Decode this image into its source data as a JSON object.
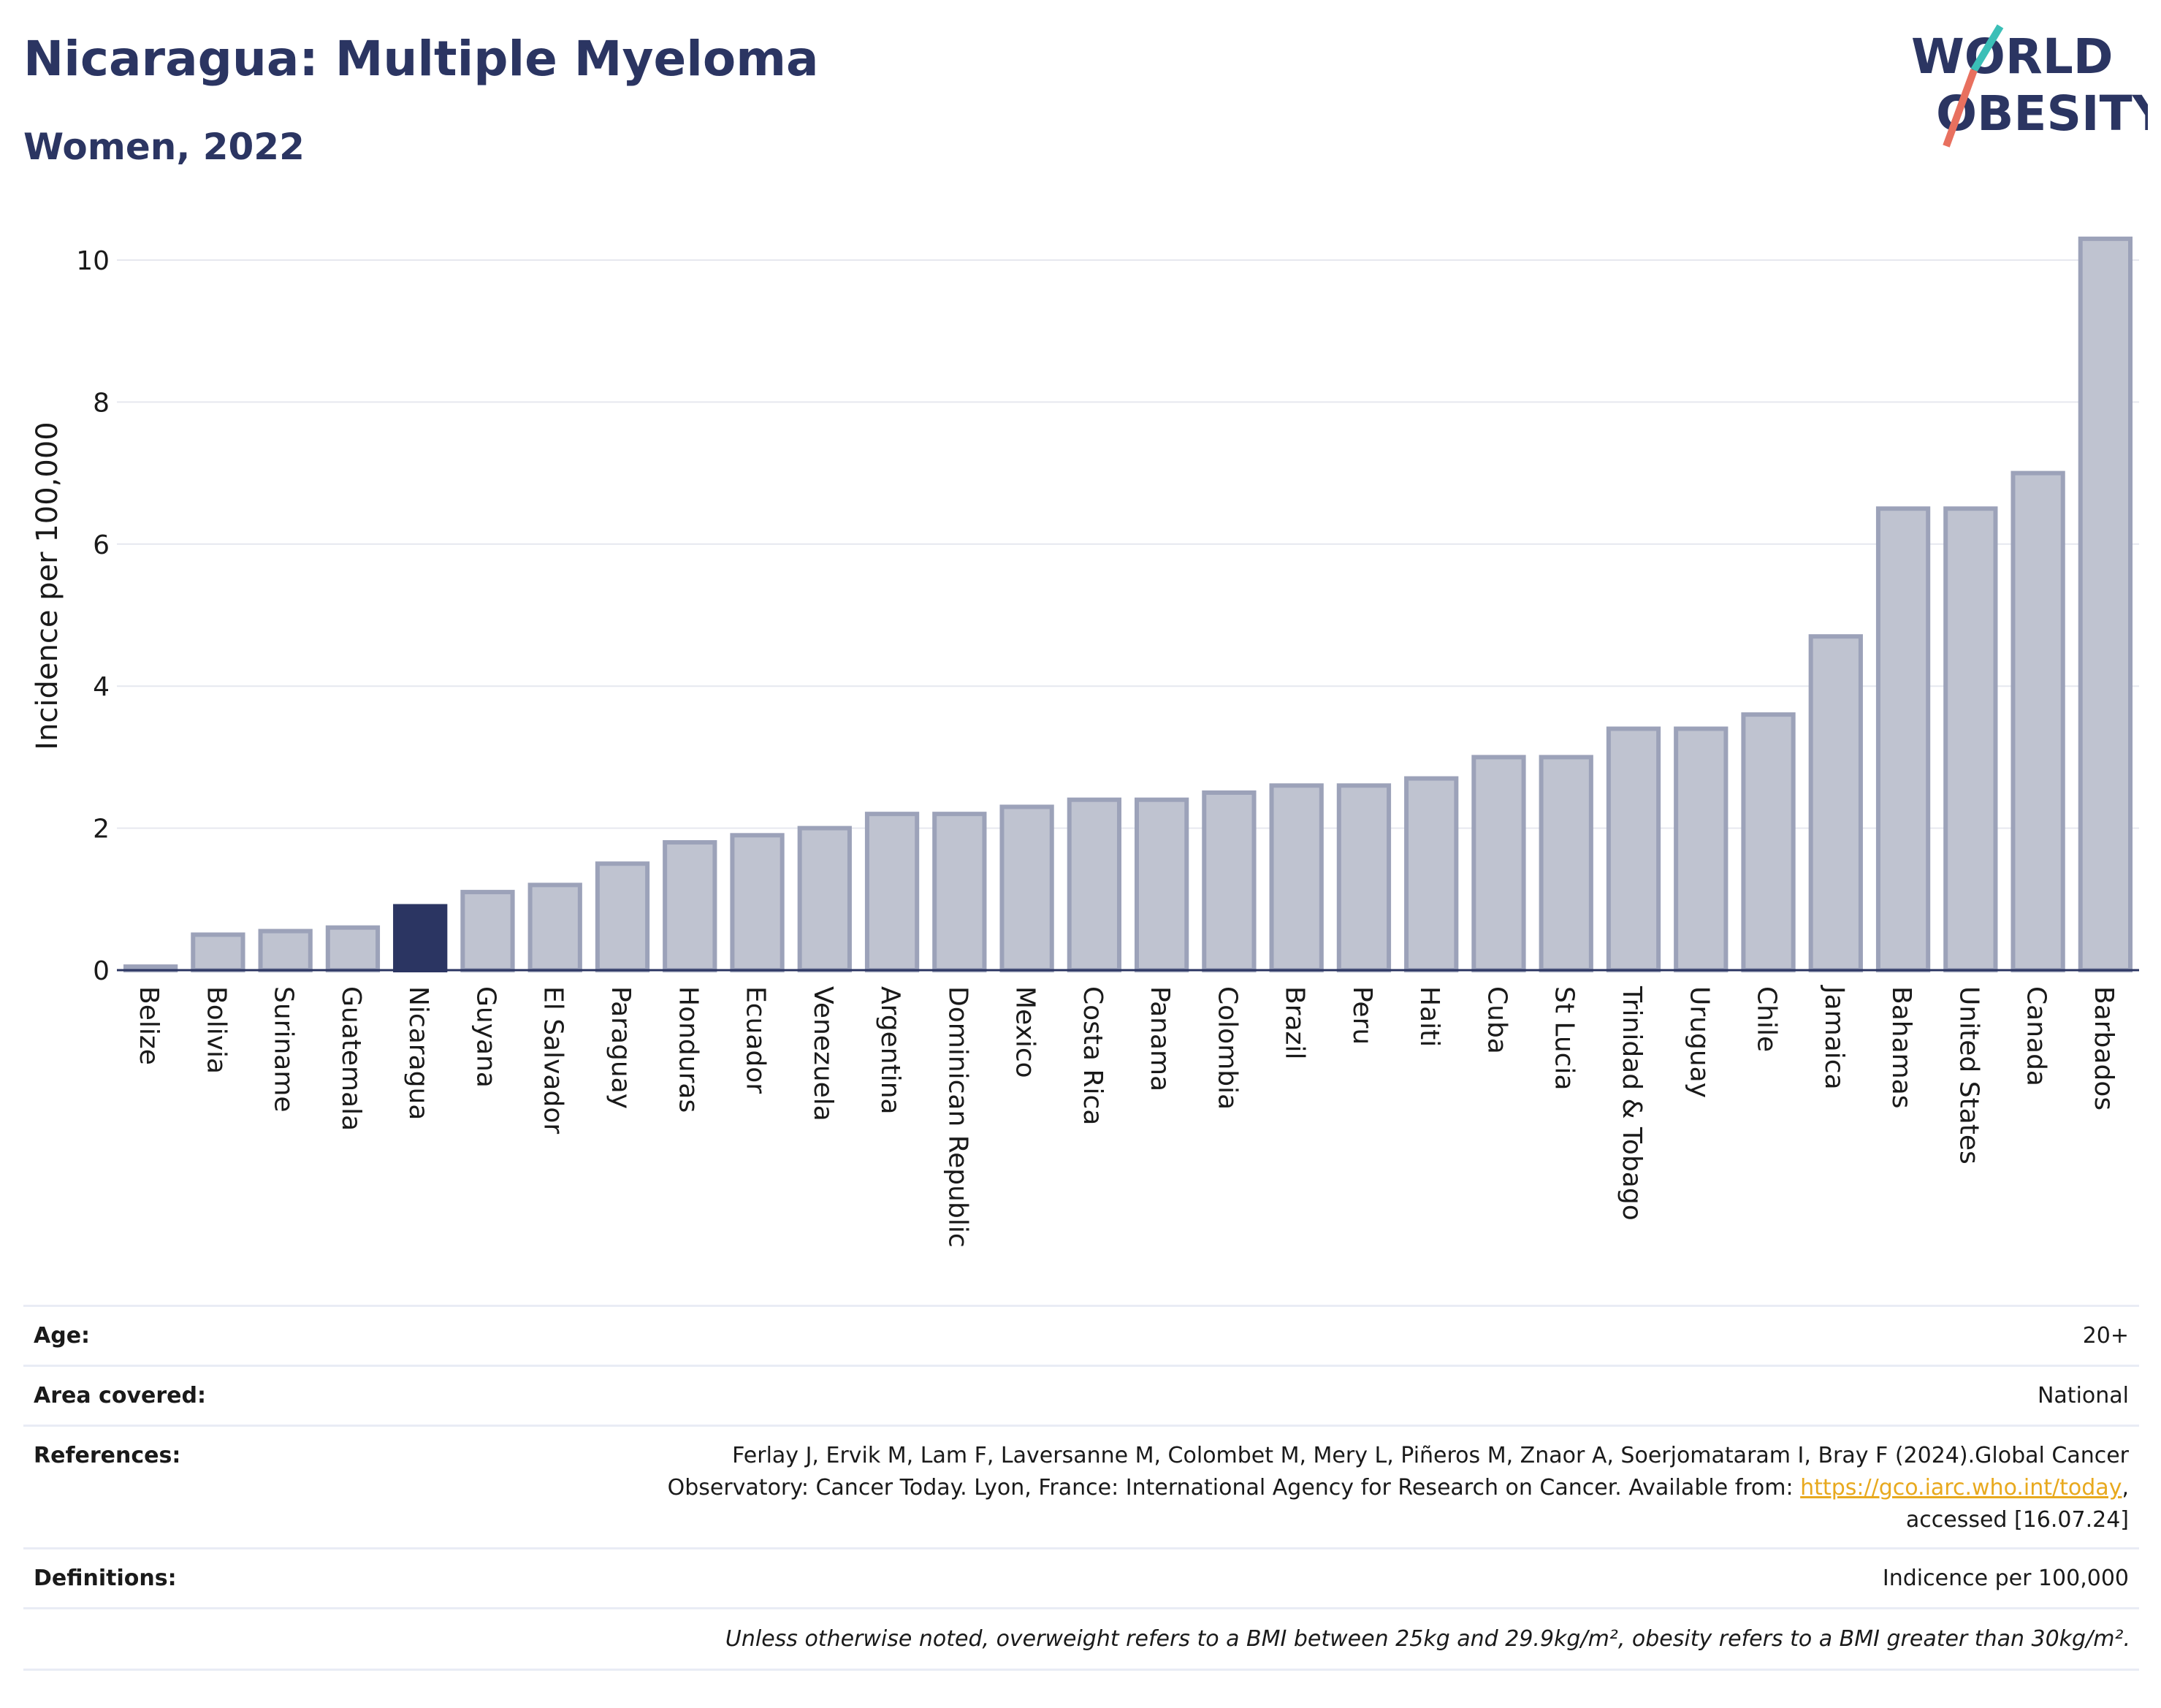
{
  "header": {
    "title": "Nicaragua: Multiple Myeloma",
    "subtitle": "Women, 2022"
  },
  "logo": {
    "line1": "WORLD",
    "line2": "OBESITY"
  },
  "colors": {
    "highlight": "#2b3562",
    "bar": "#bfc3d0",
    "bar_stroke": "#9ca2b9",
    "accent_red": "#e8705f",
    "accent_teal": "#3bbfb7"
  },
  "chart_data": {
    "type": "bar",
    "ylabel": "Incidence per 100,000",
    "ylim": [
      0,
      10.6
    ],
    "yticks": [
      0,
      2,
      4,
      6,
      8,
      10
    ],
    "highlight": "Nicaragua",
    "categories": [
      "Belize",
      "Bolivia",
      "Suriname",
      "Guatemala",
      "Nicaragua",
      "Guyana",
      "El Salvador",
      "Paraguay",
      "Honduras",
      "Ecuador",
      "Venezuela",
      "Argentina",
      "Dominican Republic",
      "Mexico",
      "Costa Rica",
      "Panama",
      "Colombia",
      "Brazil",
      "Peru",
      "Haiti",
      "Cuba",
      "St Lucia",
      "Trinidad & Tobago",
      "Uruguay",
      "Chile",
      "Jamaica",
      "Bahamas",
      "United States",
      "Canada",
      "Barbados"
    ],
    "values": [
      0.05,
      0.5,
      0.55,
      0.6,
      0.9,
      1.1,
      1.2,
      1.5,
      1.8,
      1.9,
      2.0,
      2.2,
      2.2,
      2.3,
      2.4,
      2.4,
      2.5,
      2.6,
      2.6,
      2.7,
      3.0,
      3.0,
      3.4,
      3.4,
      3.6,
      4.7,
      6.5,
      6.5,
      7.0,
      10.3
    ]
  },
  "meta": {
    "age_label": "Age:",
    "age_value": "20+",
    "area_label": "Area covered:",
    "area_value": "National",
    "ref_label": "References:",
    "ref_line1": "Ferlay J, Ervik M, Lam F, Laversanne M, Colombet M, Mery L, Piñeros M, Znaor A, Soerjomataram I, Bray F (2024).Global Cancer",
    "ref_line2": "Observatory: Cancer Today. Lyon, France: International Agency for Research on Cancer. Available from: ",
    "ref_link": "https://gco.iarc.who.int/today",
    "ref_line2_end": ",",
    "ref_line3": "accessed [16.07.24]",
    "def_label": "Definitions:",
    "def_value": "Indicence per 100,000",
    "note": "Unless otherwise noted, overweight refers to a BMI between 25kg and 29.9kg/m², obesity refers to a BMI greater than 30kg/m²."
  }
}
